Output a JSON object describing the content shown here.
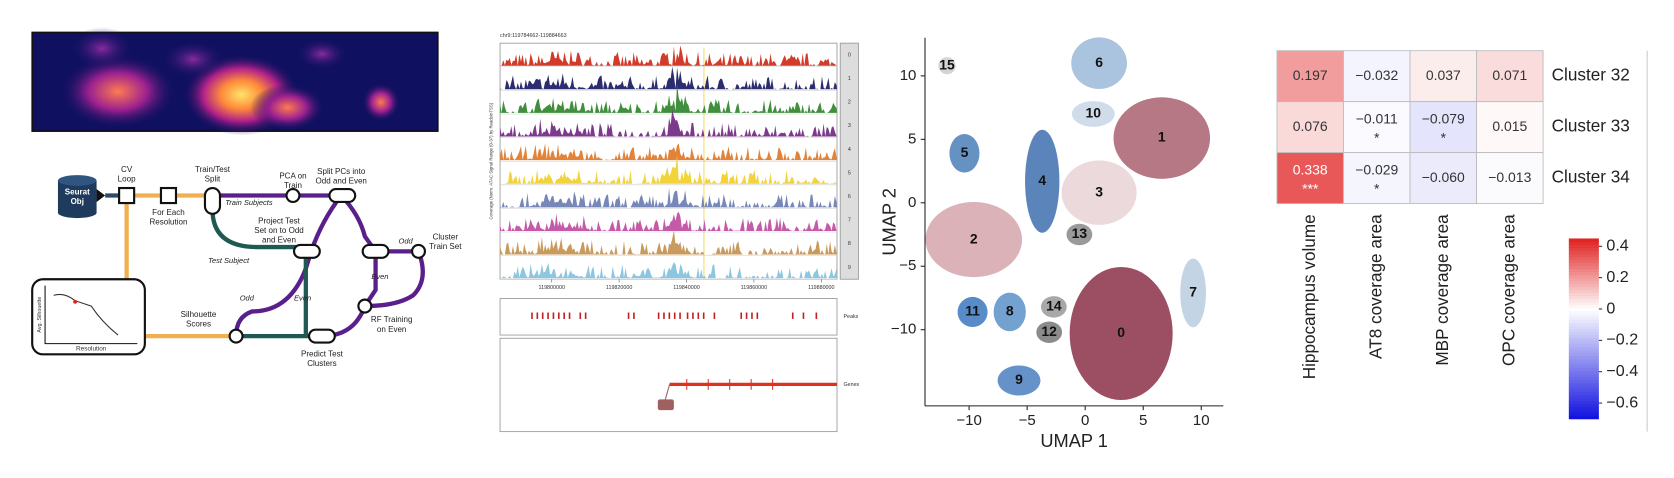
{
  "diagram": {
    "nodes": [
      {
        "lines": [
          "Seurat",
          "Obj"
        ]
      },
      {
        "lines": [
          "CV",
          "Loop"
        ]
      },
      {
        "lines": [
          "For Each",
          "Resolution"
        ]
      },
      {
        "lines": [
          "Train/Test",
          "Split"
        ]
      },
      {
        "lines": [
          "PCA on",
          "Train"
        ]
      },
      {
        "lines": [
          "Split PCs into",
          "Odd and Even"
        ]
      },
      {
        "lines": [
          "Project Test",
          "Set on to Odd",
          "and Even"
        ]
      },
      {
        "lines": [
          "Cluster",
          "Train Set"
        ]
      },
      {
        "lines": [
          "RF Training",
          "on Even"
        ]
      },
      {
        "lines": [
          "Silhouette",
          "Scores"
        ]
      },
      {
        "lines": [
          "Predict Test",
          "Clusters"
        ]
      }
    ],
    "edge_labels": [
      "Train Subjects",
      "Test Subject",
      "Odd",
      "Even",
      "Odd",
      "Even"
    ],
    "inset": {
      "y_label": "Avg. Silhouette",
      "x_label": "Resolution"
    }
  },
  "tracks": {
    "title": "chr9:119784662-119884663",
    "y_label": "Coverage (Norm. ATAC Signal Range (0-37) by ReadsInTSS)",
    "track_names": [
      "0",
      "1",
      "2",
      "3",
      "4",
      "5",
      "6",
      "7",
      "8",
      "9"
    ],
    "colors": [
      "#d23b2a",
      "#2b2d6e",
      "#3f8f3c",
      "#7d3a8c",
      "#e2833a",
      "#f2d43a",
      "#7787b8",
      "#c45aa8",
      "#c89a5c",
      "#8cc6e0"
    ],
    "xlim": [
      119784662,
      119884663
    ],
    "xticks": [
      119800000,
      119820000,
      119840000,
      119860000,
      119880000
    ],
    "peaks_label": "Peaks",
    "genes_label": "Genes"
  },
  "chart_data": [
    {
      "type": "scatter",
      "x_label": "UMAP 1",
      "y_label": "UMAP 2",
      "xlim": [
        -13.8,
        11.9
      ],
      "ylim": [
        -16,
        13
      ],
      "xticks": [
        {
          "value": -10,
          "label": "−10"
        },
        {
          "value": -5,
          "label": "−5"
        },
        0,
        5,
        10
      ],
      "yticks": [
        10,
        5,
        0,
        {
          "value": -5,
          "label": "−5"
        },
        {
          "value": -10,
          "label": "−10"
        }
      ],
      "clusters": [
        {
          "label": "0",
          "x": 3.1,
          "y": -10.3,
          "color": "#8b3048"
        },
        {
          "label": "1",
          "x": 6.6,
          "y": 5.1,
          "color": "#a8606e"
        },
        {
          "label": "2",
          "x": -9.6,
          "y": -2.9,
          "color": "#d4a4ac"
        },
        {
          "label": "3",
          "x": 1.2,
          "y": 0.8,
          "color": "#e8d2d6"
        },
        {
          "label": "4",
          "x": -3.7,
          "y": 1.7,
          "color": "#3d6fae"
        },
        {
          "label": "5",
          "x": -10.4,
          "y": 3.9,
          "color": "#4a7fb8"
        },
        {
          "label": "6",
          "x": 1.2,
          "y": 11,
          "color": "#9bb8d8"
        },
        {
          "label": "7",
          "x": 9.3,
          "y": -7.1,
          "color": "#b8cce0"
        },
        {
          "label": "8",
          "x": -6.5,
          "y": -8.6,
          "color": "#5b90c8"
        },
        {
          "label": "9",
          "x": -5.7,
          "y": -14,
          "color": "#4a80c0"
        },
        {
          "label": "10",
          "x": 0.7,
          "y": 7.0,
          "color": "#c9d6e6"
        },
        {
          "label": "11",
          "x": -9.7,
          "y": -8.6,
          "color": "#3a78c0"
        },
        {
          "label": "12",
          "x": -3.1,
          "y": -10.2,
          "color": "#777777"
        },
        {
          "label": "13",
          "x": -0.5,
          "y": -2.5,
          "color": "#888888"
        },
        {
          "label": "14",
          "x": -2.7,
          "y": -8.2,
          "color": "#999999"
        },
        {
          "label": "15",
          "x": -11.9,
          "y": 10.8,
          "color": "#cccccc"
        }
      ]
    },
    {
      "type": "heatmap",
      "rows": [
        "Cluster 32",
        "Cluster 33",
        "Cluster 34"
      ],
      "columns": [
        "Hippocampus volume",
        "AT8 coverage area",
        "MBP coverage area",
        "OPC coverage area"
      ],
      "values": [
        [
          0.197,
          -0.032,
          0.037,
          0.071
        ],
        [
          0.076,
          -0.011,
          -0.079,
          0.015
        ],
        [
          0.338,
          -0.029,
          -0.06,
          -0.013
        ]
      ],
      "value_labels": [
        [
          "0.197",
          "−0.032",
          "0.037",
          "0.071"
        ],
        [
          "0.076",
          "−0.011",
          "−0.079",
          "0.015"
        ],
        [
          "0.338",
          "−0.029",
          "−0.060",
          "−0.013"
        ]
      ],
      "significance": [
        [
          null,
          null,
          null,
          null
        ],
        [
          null,
          "*",
          "*",
          null
        ],
        [
          "***",
          "*",
          null,
          null
        ]
      ],
      "clim": [
        -0.7,
        0.45
      ],
      "cticks": [
        0.4,
        0.2,
        0,
        {
          "value": -0.2,
          "label": "−0.2"
        },
        {
          "value": -0.4,
          "label": "−0.4"
        },
        {
          "value": -0.6,
          "label": "−0.6"
        }
      ],
      "low_color": "#1010e0",
      "high_color": "#e02020"
    }
  ]
}
